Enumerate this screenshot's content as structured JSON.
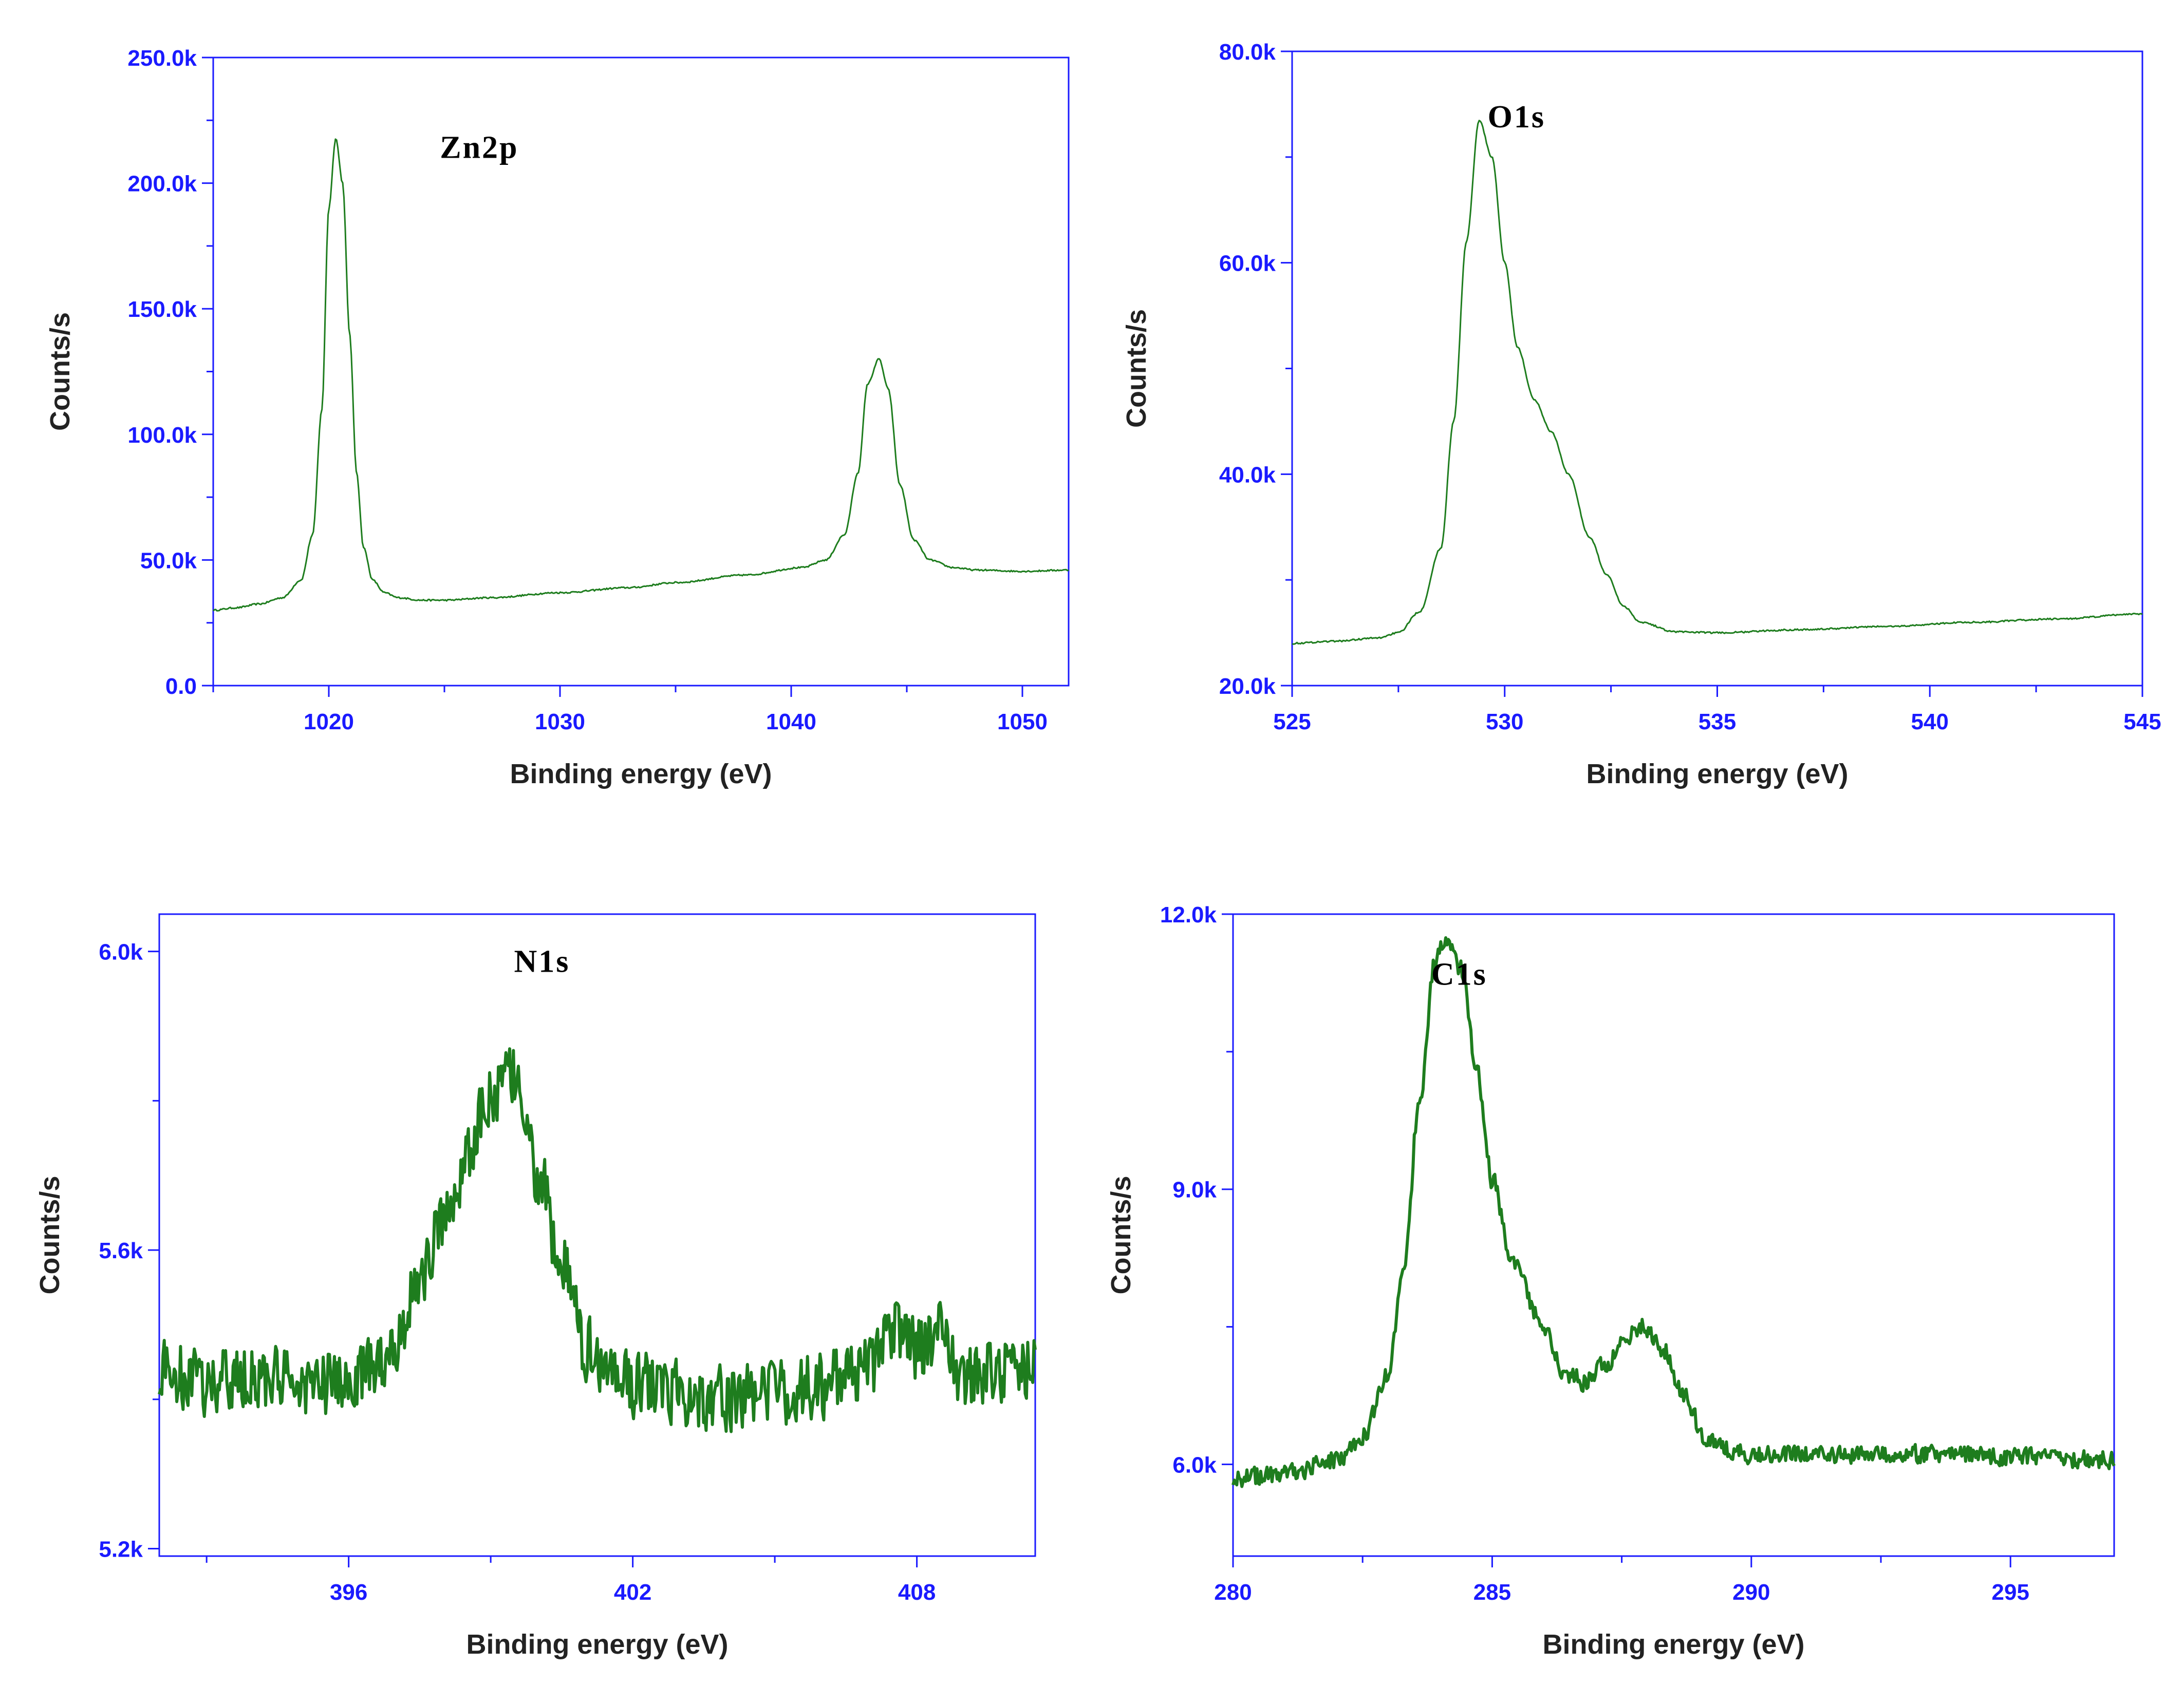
{
  "chart_data": [
    {
      "type": "line",
      "id": "zn2p",
      "title": "",
      "annotation": "Zn2p",
      "xlabel": "Binding energy (eV)",
      "ylabel": "Counts/s",
      "xlim": [
        1015,
        1052
      ],
      "ylim": [
        0,
        250000
      ],
      "xticks": [
        1020,
        1030,
        1040,
        1050
      ],
      "xtick_labels": [
        "1020",
        "1030",
        "1040",
        "1050"
      ],
      "yticks": [
        0,
        50000,
        100000,
        150000,
        200000,
        250000
      ],
      "ytick_labels": [
        "0.0",
        "50.0k",
        "100.0k",
        "150.0k",
        "200.0k",
        "250.0k"
      ],
      "color": "#1e7d1e",
      "noise": 0.0,
      "stroke": 3,
      "series": [
        {
          "name": "Zn2p",
          "x": [
            1015,
            1016,
            1017,
            1018,
            1018.8,
            1019.3,
            1019.7,
            1020.0,
            1020.3,
            1020.6,
            1020.9,
            1021.2,
            1021.5,
            1021.9,
            1022.4,
            1023,
            1024,
            1025,
            1027,
            1030,
            1033,
            1035,
            1038,
            1040.5,
            1041.5,
            1042.3,
            1042.9,
            1043.3,
            1043.8,
            1044.2,
            1044.7,
            1045.3,
            1046,
            1047,
            1048,
            1050,
            1052
          ],
          "y": [
            30000,
            31000,
            32500,
            35000,
            42000,
            60000,
            110000,
            190000,
            218000,
            200000,
            140000,
            85000,
            55000,
            42000,
            37000,
            35000,
            34000,
            34000,
            35000,
            37000,
            39000,
            41000,
            44000,
            47000,
            50000,
            60000,
            85000,
            120000,
            130000,
            118000,
            80000,
            58000,
            50000,
            47000,
            46000,
            45500,
            46000
          ]
        }
      ]
    },
    {
      "type": "line",
      "id": "o1s",
      "title": "",
      "annotation": "O1s",
      "xlabel": "Binding energy (eV)",
      "ylabel": "Counts/s",
      "xlim": [
        525,
        545
      ],
      "ylim": [
        20000,
        80000
      ],
      "xticks": [
        525,
        530,
        535,
        540,
        545
      ],
      "xtick_labels": [
        "525",
        "530",
        "535",
        "540",
        "545"
      ],
      "yticks": [
        20000,
        40000,
        60000,
        80000
      ],
      "ytick_labels": [
        "20.0k",
        "40.0k",
        "60.0k",
        "80.0k"
      ],
      "color": "#1e7d1e",
      "noise": 0.0,
      "stroke": 3,
      "series": [
        {
          "name": "O1s",
          "x": [
            525,
            526,
            527,
            527.5,
            528,
            528.5,
            528.8,
            529.1,
            529.4,
            529.7,
            530.0,
            530.3,
            530.7,
            531.1,
            531.5,
            532,
            532.4,
            532.8,
            533.2,
            534,
            535,
            537,
            539,
            541,
            543,
            545
          ],
          "y": [
            24000,
            24200,
            24500,
            25000,
            27000,
            33000,
            45000,
            62000,
            73500,
            70000,
            60000,
            52000,
            47000,
            44000,
            40000,
            34000,
            30500,
            27500,
            26000,
            25100,
            25000,
            25300,
            25600,
            26000,
            26300,
            26800
          ]
        }
      ]
    },
    {
      "type": "line",
      "id": "n1s",
      "title": "",
      "annotation": "N1s",
      "xlabel": "Binding energy (eV)",
      "ylabel": "Counts/s",
      "xlim": [
        392,
        410.5
      ],
      "ylim": [
        5190,
        6050
      ],
      "xticks": [
        396,
        402,
        408
      ],
      "xtick_labels": [
        "396",
        "402",
        "408"
      ],
      "yticks": [
        5200,
        5600,
        6000
      ],
      "ytick_labels": [
        "5.2k",
        "5.6k",
        "6.0k"
      ],
      "color": "#1e7d1e",
      "noise": 0.9,
      "stroke": 6,
      "series": [
        {
          "name": "N1s",
          "x": [
            392,
            393,
            394,
            395,
            396,
            396.5,
            397,
            397.5,
            398,
            398.5,
            399,
            399.5,
            400,
            400.5,
            401,
            401.5,
            402,
            403,
            404,
            405,
            406,
            407,
            407.5,
            408,
            408.5,
            409,
            410,
            410.5
          ],
          "y": [
            5440,
            5420,
            5430,
            5420,
            5420,
            5440,
            5480,
            5560,
            5640,
            5720,
            5810,
            5830,
            5700,
            5580,
            5470,
            5440,
            5420,
            5410,
            5400,
            5410,
            5420,
            5440,
            5500,
            5470,
            5490,
            5430,
            5440,
            5450
          ]
        }
      ]
    },
    {
      "type": "line",
      "id": "c1s",
      "title": "",
      "annotation": "C1s",
      "xlabel": "Binding energy (eV)",
      "ylabel": "Counts/s",
      "xlim": [
        280,
        297
      ],
      "ylim": [
        5000,
        12000
      ],
      "xticks": [
        280,
        285,
        290,
        295
      ],
      "xtick_labels": [
        "280",
        "285",
        "290",
        "295"
      ],
      "yticks": [
        6000,
        9000,
        12000
      ],
      "ytick_labels": [
        "6.0k",
        "9.0k",
        "12.0k"
      ],
      "color": "#1e7d1e",
      "noise": 0.25,
      "stroke": 6,
      "series": [
        {
          "name": "C1s",
          "x": [
            280,
            281,
            282,
            282.5,
            283,
            283.3,
            283.6,
            283.9,
            284.1,
            284.4,
            284.7,
            285,
            285.4,
            285.9,
            286.4,
            286.8,
            287.2,
            287.6,
            287.9,
            288.3,
            288.7,
            289.1,
            289.6,
            290,
            291,
            293,
            295,
            297
          ],
          "y": [
            5850,
            5900,
            6050,
            6300,
            7000,
            8200,
            10000,
            11500,
            11700,
            11400,
            10300,
            9100,
            8200,
            7600,
            7000,
            6900,
            7100,
            7400,
            7500,
            7250,
            6750,
            6300,
            6150,
            6100,
            6100,
            6120,
            6080,
            6050
          ]
        }
      ]
    }
  ]
}
